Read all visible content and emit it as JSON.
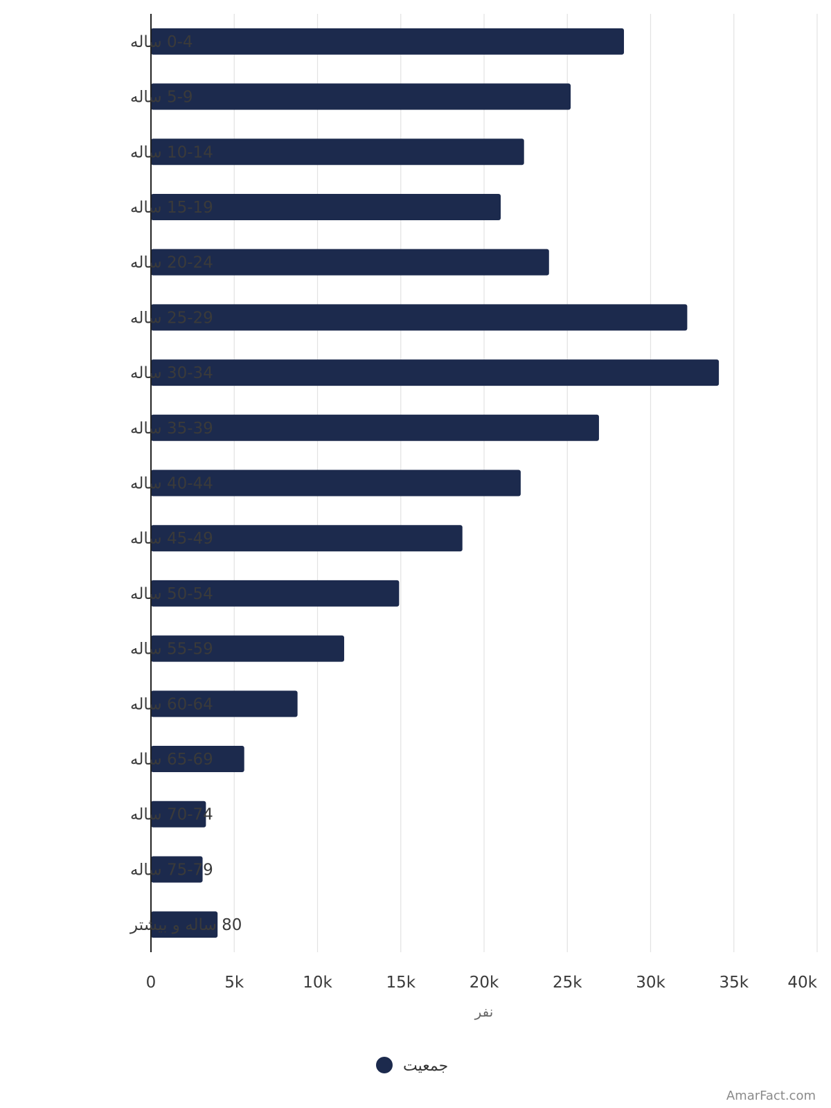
{
  "chart_data": {
    "type": "bar",
    "orientation": "horizontal",
    "categories": [
      "0-4 ساله",
      "5-9 ساله",
      "10-14 ساله",
      "15-19 ساله",
      "20-24 ساله",
      "25-29 ساله",
      "30-34 ساله",
      "35-39 ساله",
      "40-44 ساله",
      "45-49 ساله",
      "50-54 ساله",
      "55-59 ساله",
      "60-64 ساله",
      "65-69 ساله",
      "70-74 ساله",
      "75-79 ساله",
      "80 ساله و بیشتر"
    ],
    "series": [
      {
        "name": "جمعیت",
        "values": [
          28400,
          25200,
          22400,
          21000,
          23900,
          32200,
          34100,
          26900,
          22200,
          18700,
          14900,
          11600,
          8800,
          5600,
          3300,
          3100,
          4000
        ]
      }
    ],
    "xlabel": "نفر",
    "ylabel": "",
    "xlim": [
      0,
      40000
    ],
    "x_ticks": [
      "0",
      "5k",
      "10k",
      "15k",
      "20k",
      "25k",
      "30k",
      "35k",
      "40k"
    ],
    "grid": true,
    "legend_position": "bottom",
    "bar_color": "#1c2a4d"
  },
  "watermark": "AmarFact.com"
}
